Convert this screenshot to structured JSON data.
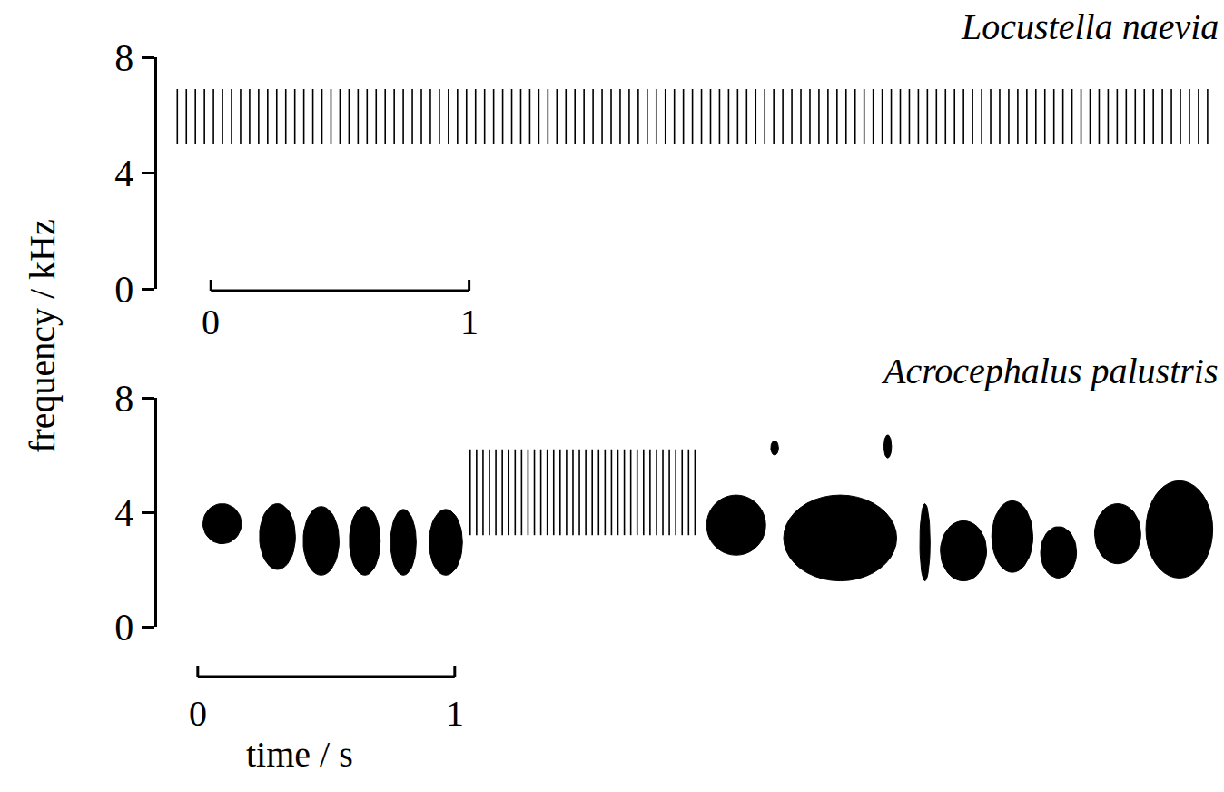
{
  "chart_data": [
    {
      "type": "spectrogram",
      "title": "Locustella naevia",
      "ylabel": "frequency / kHz",
      "ylim": [
        0,
        8
      ],
      "yticks": [
        0,
        4,
        8
      ],
      "xlim": [
        -0.21,
        3.9
      ],
      "scale_bar": [
        0,
        1
      ],
      "elements": [
        {
          "t0": -0.13,
          "t1": 3.86,
          "f_low": 5.0,
          "f_high": 6.9,
          "marker": "pulses",
          "pulse_interval": 0.035
        }
      ]
    },
    {
      "type": "spectrogram",
      "title": "Acrocephalus palustris",
      "xlabel": "time / s",
      "ylim": [
        0,
        8
      ],
      "yticks": [
        0,
        4,
        8
      ],
      "xlim": [
        -0.16,
        3.97
      ],
      "scale_bar": [
        0,
        1
      ],
      "elements": [
        {
          "t0": 0.02,
          "t1": 0.17,
          "f_low": 2.9,
          "f_high": 4.3,
          "marker": "blob"
        },
        {
          "t0": 0.24,
          "t1": 0.38,
          "f_low": 2.0,
          "f_high": 4.3,
          "marker": "blob"
        },
        {
          "t0": 0.41,
          "t1": 0.55,
          "f_low": 1.8,
          "f_high": 4.2,
          "marker": "blob"
        },
        {
          "t0": 0.59,
          "t1": 0.71,
          "f_low": 1.8,
          "f_high": 4.2,
          "marker": "blob"
        },
        {
          "t0": 0.75,
          "t1": 0.85,
          "f_low": 1.8,
          "f_high": 4.1,
          "marker": "blob"
        },
        {
          "t0": 0.9,
          "t1": 1.03,
          "f_low": 1.8,
          "f_high": 4.1,
          "marker": "blob"
        },
        {
          "t0": 1.06,
          "t1": 1.94,
          "f_low": 3.2,
          "f_high": 6.2,
          "marker": "pulses",
          "pulse_interval": 0.025
        },
        {
          "t0": 1.98,
          "t1": 2.21,
          "f_low": 2.5,
          "f_high": 4.6,
          "marker": "blob"
        },
        {
          "t0": 2.23,
          "t1": 2.26,
          "f_low": 6.0,
          "f_high": 6.5,
          "marker": "blob"
        },
        {
          "t0": 2.28,
          "t1": 2.72,
          "f_low": 1.6,
          "f_high": 4.6,
          "marker": "blob"
        },
        {
          "t0": 2.67,
          "t1": 2.7,
          "f_low": 5.9,
          "f_high": 6.7,
          "marker": "blob"
        },
        {
          "t0": 2.81,
          "t1": 2.85,
          "f_low": 1.6,
          "f_high": 4.3,
          "marker": "blob"
        },
        {
          "t0": 2.89,
          "t1": 3.07,
          "f_low": 1.6,
          "f_high": 3.7,
          "marker": "blob"
        },
        {
          "t0": 3.09,
          "t1": 3.25,
          "f_low": 1.9,
          "f_high": 4.4,
          "marker": "blob"
        },
        {
          "t0": 3.28,
          "t1": 3.42,
          "f_low": 1.7,
          "f_high": 3.5,
          "marker": "blob"
        },
        {
          "t0": 3.49,
          "t1": 3.67,
          "f_low": 2.2,
          "f_high": 4.3,
          "marker": "blob"
        },
        {
          "t0": 3.69,
          "t1": 3.95,
          "f_low": 1.7,
          "f_high": 5.1,
          "marker": "blob"
        }
      ]
    }
  ]
}
